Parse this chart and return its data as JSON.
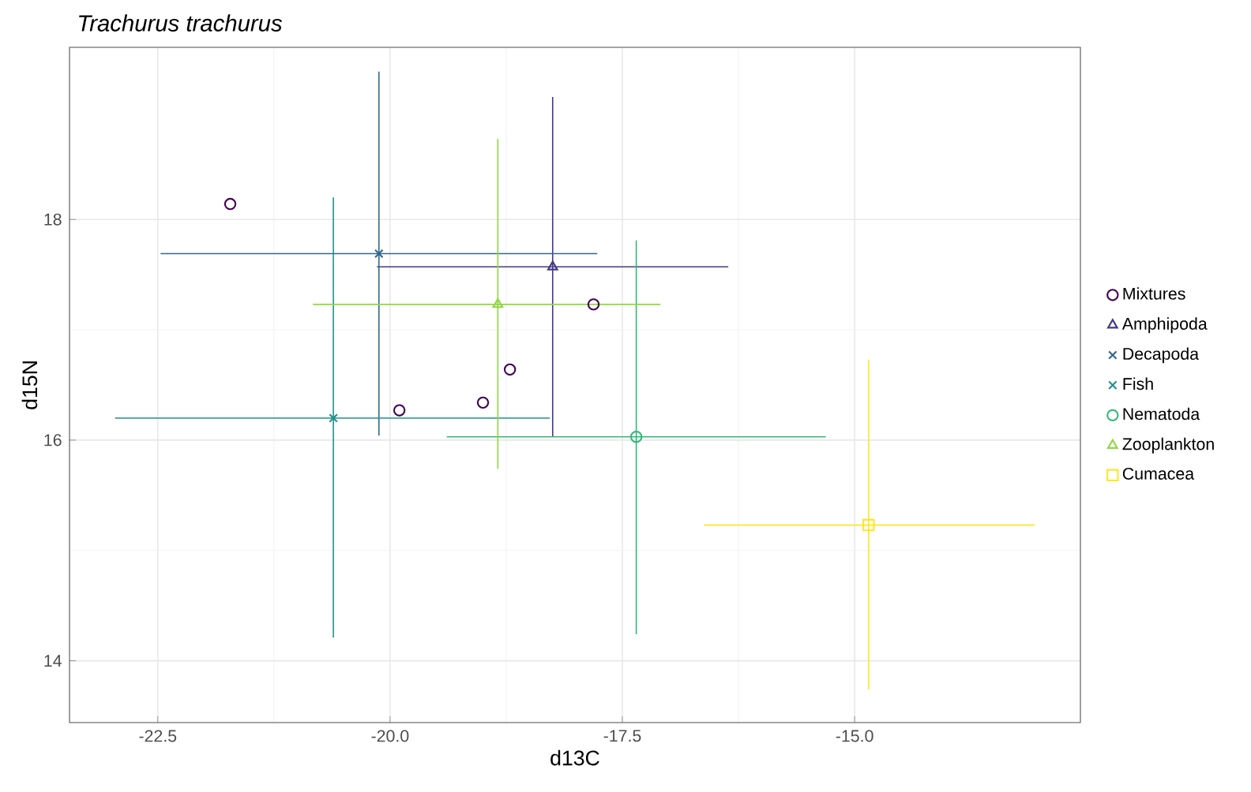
{
  "chart_data": {
    "type": "scatter",
    "title": "Trachurus trachurus",
    "xlabel": "d13C",
    "ylabel": "d15N",
    "xlim": [
      -23.45,
      -12.57
    ],
    "ylim": [
      13.44,
      19.56
    ],
    "xticks": [
      -22.5,
      {
        "value": -20,
        "label": "-20.0"
      },
      -17.5,
      {
        "value": -15,
        "label": "-15.0"
      }
    ],
    "yticks": [
      14,
      16,
      18
    ],
    "grid": true,
    "legend": "right",
    "series": [
      {
        "name": "Mixtures",
        "color": "#440154",
        "marker": "circle",
        "x": [
          -21.72,
          -19.9,
          -19.0,
          -18.71,
          -17.81
        ],
        "values": [
          18.14,
          16.27,
          16.34,
          16.64,
          17.23
        ]
      },
      {
        "name": "Amphipoda",
        "color": "#443a83",
        "marker": "triangle",
        "x": [
          -18.25
        ],
        "values": [
          17.57
        ],
        "errors": [
          [
            16.03,
            19.11
          ]
        ],
        "xerrors": [
          [
            -20.14,
            -16.36
          ]
        ]
      },
      {
        "name": "Decapoda",
        "color": "#31688e",
        "marker": "cross",
        "x": [
          -20.12
        ],
        "values": [
          17.69
        ],
        "errors": [
          [
            16.04,
            19.34
          ]
        ],
        "xerrors": [
          [
            -22.47,
            -17.77
          ]
        ]
      },
      {
        "name": "Fish",
        "color": "#21908d",
        "marker": "cross",
        "x": [
          -20.61
        ],
        "values": [
          16.2
        ],
        "errors": [
          [
            14.21,
            18.2
          ]
        ],
        "xerrors": [
          [
            -22.96,
            -18.28
          ]
        ]
      },
      {
        "name": "Nematoda",
        "color": "#35b779",
        "marker": "circle",
        "x": [
          -17.35
        ],
        "values": [
          16.03
        ],
        "errors": [
          [
            14.24,
            17.81
          ]
        ],
        "xerrors": [
          [
            -19.39,
            -15.31
          ]
        ]
      },
      {
        "name": "Zooplankton",
        "color": "#8fd744",
        "marker": "triangle",
        "x": [
          -18.84
        ],
        "values": [
          17.23
        ],
        "errors": [
          [
            15.74,
            18.73
          ]
        ],
        "xerrors": [
          [
            -20.83,
            -17.09
          ]
        ]
      },
      {
        "name": "Cumacea",
        "color": "#fde725",
        "marker": "square",
        "x": [
          -14.85
        ],
        "values": [
          15.23
        ],
        "errors": [
          [
            13.74,
            16.73
          ]
        ],
        "xerrors": [
          [
            -16.62,
            -13.06
          ]
        ]
      }
    ]
  }
}
